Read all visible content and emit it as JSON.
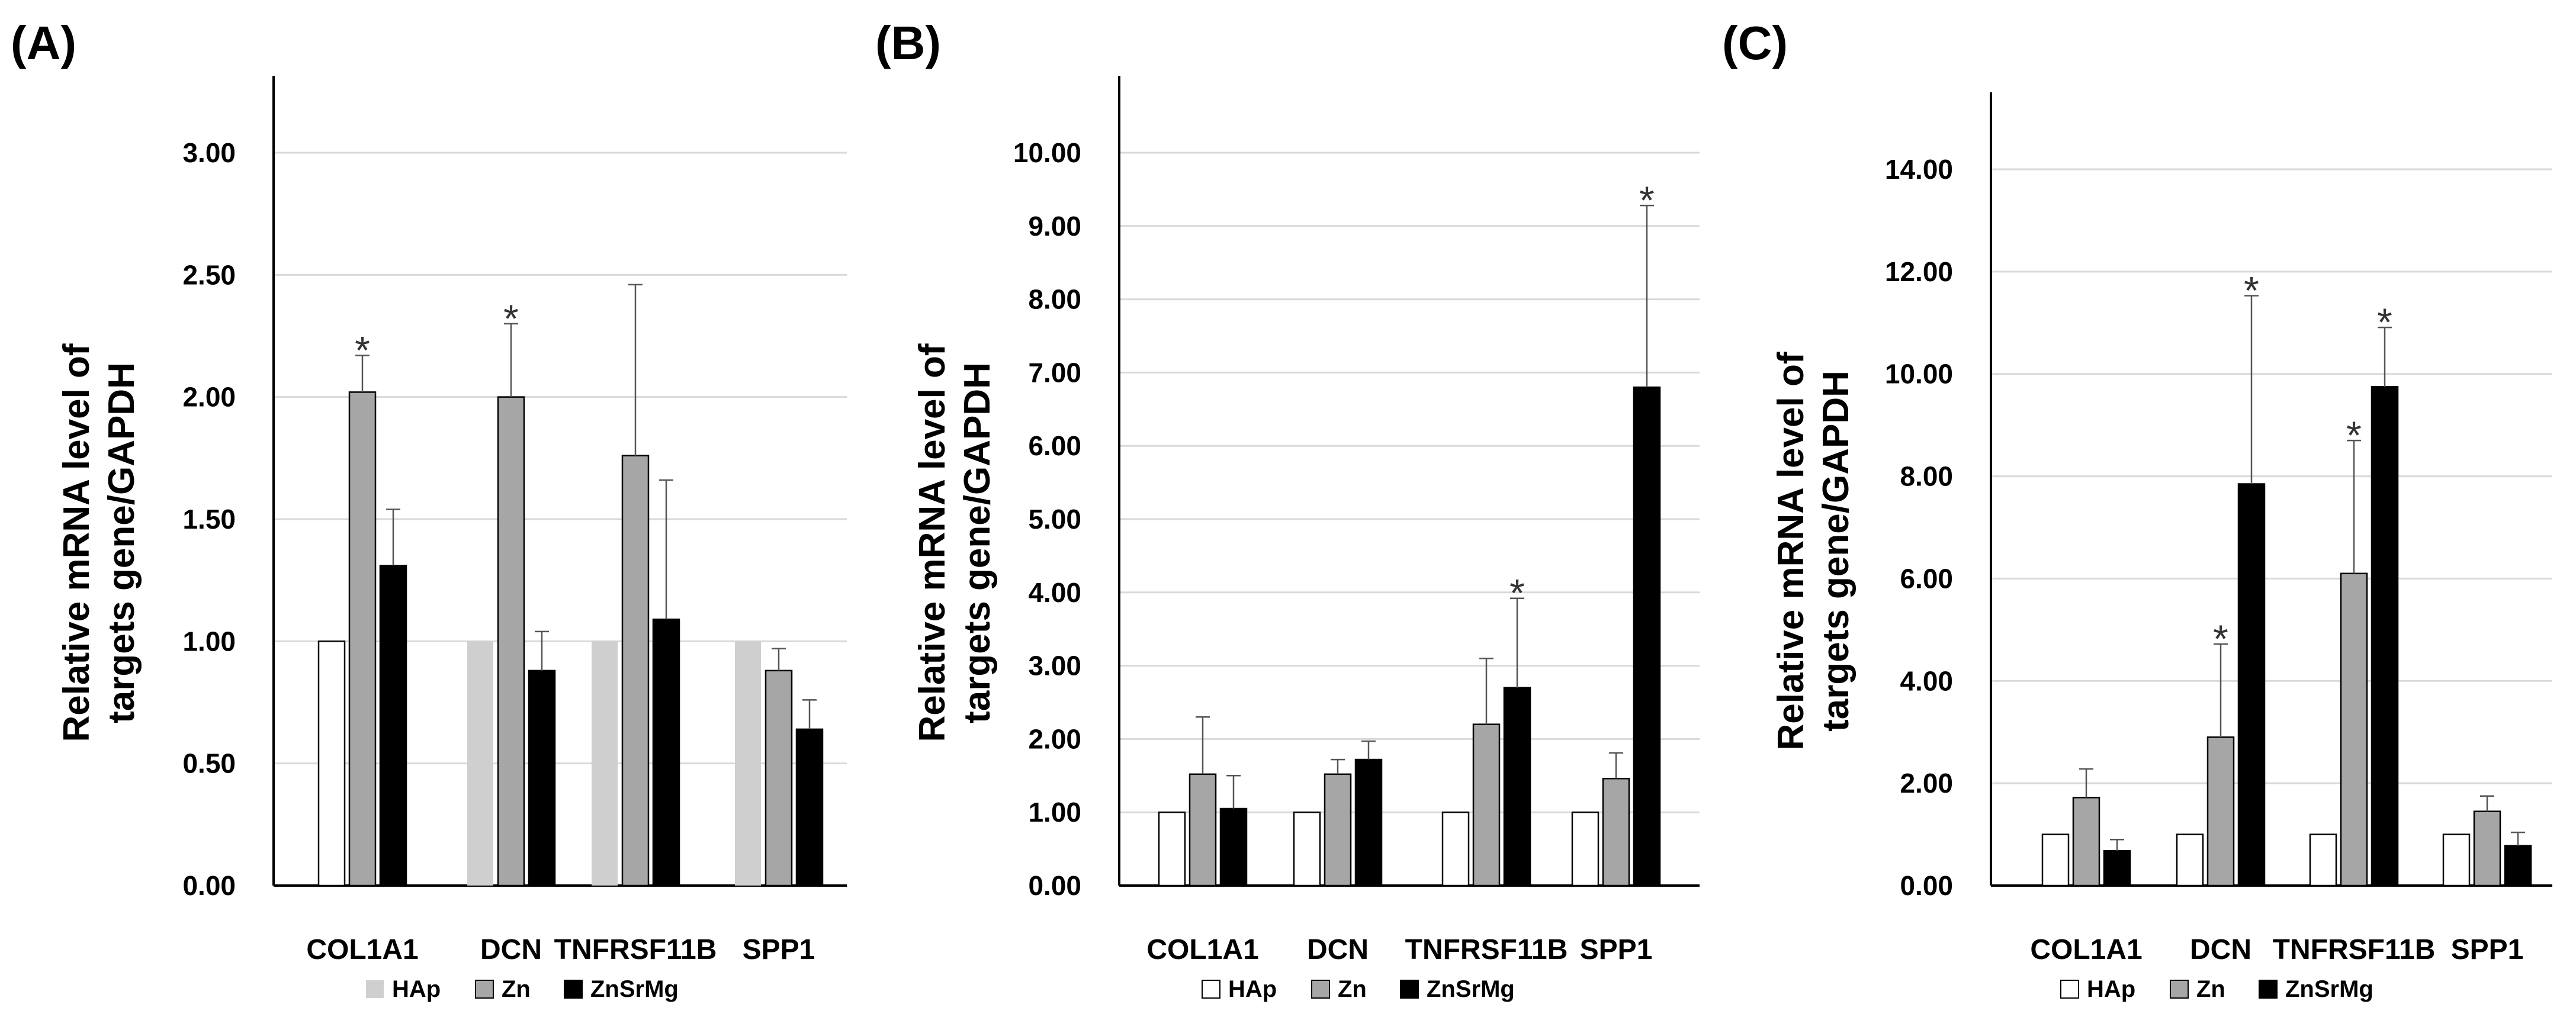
{
  "chart_data": [
    {
      "panel_label": "(A)",
      "type": "bar",
      "ylabel_line1": "Relative mRNA level of",
      "ylabel_line2": "targets gene/GAPDH",
      "categories": [
        "COL1A1",
        "DCN",
        "TNFRSF11B",
        "SPP1"
      ],
      "ylim": [
        0,
        3.0
      ],
      "yticks": [
        0,
        0.5,
        1.0,
        1.5,
        2.0,
        2.5,
        3.0
      ],
      "ytick_labels": [
        "0.00",
        "0.50",
        "1.00",
        "1.50",
        "2.00",
        "2.50",
        "3.00"
      ],
      "grid": true,
      "legend_position": "bottom",
      "series": [
        {
          "name": "HAp",
          "values": [
            1.0,
            1.0,
            1.0,
            1.0
          ],
          "errors": [
            0,
            0,
            0,
            0
          ],
          "sig": [
            false,
            false,
            false,
            false
          ]
        },
        {
          "name": "Zn",
          "values": [
            2.02,
            2.0,
            1.76,
            0.88
          ],
          "errors": [
            0.15,
            0.3,
            0.7,
            0.09
          ],
          "sig": [
            true,
            true,
            false,
            false
          ]
        },
        {
          "name": "ZnSrMg",
          "values": [
            1.31,
            0.88,
            1.09,
            0.64
          ],
          "errors": [
            0.23,
            0.16,
            0.57,
            0.12
          ],
          "sig": [
            false,
            false,
            false,
            false
          ]
        }
      ],
      "colors": {
        "HAp_first": "#ffffff",
        "HAp": "#cfcfcf",
        "Zn": "#a6a6a6",
        "ZnSrMg": "#000000"
      },
      "legend": [
        "HAp",
        "Zn",
        "ZnSrMg"
      ],
      "sig_symbol": "*"
    },
    {
      "panel_label": "(B)",
      "type": "bar",
      "ylabel_line1": "Relative mRNA level of",
      "ylabel_line2": "targets gene/GAPDH",
      "categories": [
        "COL1A1",
        "DCN",
        "TNFRSF11B",
        "SPP1"
      ],
      "ylim": [
        0,
        10.0
      ],
      "yticks": [
        0,
        1,
        2,
        3,
        4,
        5,
        6,
        7,
        8,
        9,
        10
      ],
      "ytick_labels": [
        "0.00",
        "1.00",
        "2.00",
        "3.00",
        "4.00",
        "5.00",
        "6.00",
        "7.00",
        "8.00",
        "9.00",
        "10.00"
      ],
      "grid": true,
      "legend_position": "bottom",
      "series": [
        {
          "name": "HAp",
          "values": [
            1.0,
            1.0,
            1.0,
            1.0
          ],
          "errors": [
            0,
            0,
            0,
            0
          ],
          "sig": [
            false,
            false,
            false,
            false
          ]
        },
        {
          "name": "Zn",
          "values": [
            1.52,
            1.52,
            2.2,
            1.46
          ],
          "errors": [
            0.78,
            0.2,
            0.9,
            0.35
          ],
          "sig": [
            false,
            false,
            false,
            false
          ]
        },
        {
          "name": "ZnSrMg",
          "values": [
            1.05,
            1.72,
            2.7,
            6.8
          ],
          "errors": [
            0.45,
            0.25,
            1.22,
            2.48
          ],
          "sig": [
            false,
            false,
            true,
            true
          ]
        }
      ],
      "colors": {
        "HAp": "#ffffff",
        "Zn": "#a6a6a6",
        "ZnSrMg": "#000000"
      },
      "legend": [
        "HAp",
        "Zn",
        "ZnSrMg"
      ],
      "sig_symbol": "*"
    },
    {
      "panel_label": "(C)",
      "type": "bar",
      "ylabel_line1": "Relative mRNA level of",
      "ylabel_line2": "targets gene/GAPDH",
      "categories": [
        "COL1A1",
        "DCN",
        "TNFRSF11B",
        "SPP1"
      ],
      "ylim": [
        0,
        14.0
      ],
      "yticks": [
        0,
        2,
        4,
        6,
        8,
        10,
        12,
        14
      ],
      "ytick_labels": [
        "0.00",
        "2.00",
        "4.00",
        "6.00",
        "8.00",
        "10.00",
        "12.00",
        "14.00"
      ],
      "grid": true,
      "legend_position": "bottom",
      "series": [
        {
          "name": "HAp",
          "values": [
            1.0,
            1.0,
            1.0,
            1.0
          ],
          "errors": [
            0,
            0,
            0,
            0
          ],
          "sig": [
            false,
            false,
            false,
            false
          ]
        },
        {
          "name": "Zn",
          "values": [
            1.72,
            2.9,
            6.1,
            1.45
          ],
          "errors": [
            0.56,
            1.82,
            2.6,
            0.3
          ],
          "sig": [
            false,
            true,
            true,
            false
          ]
        },
        {
          "name": "ZnSrMg",
          "values": [
            0.68,
            7.85,
            9.75,
            0.78
          ],
          "errors": [
            0.22,
            3.68,
            1.16,
            0.26
          ],
          "sig": [
            false,
            true,
            true,
            false
          ]
        }
      ],
      "colors": {
        "HAp": "#ffffff",
        "Zn": "#a6a6a6",
        "ZnSrMg": "#000000"
      },
      "legend": [
        "HAp",
        "Zn",
        "ZnSrMg"
      ],
      "sig_symbol": "*"
    }
  ]
}
